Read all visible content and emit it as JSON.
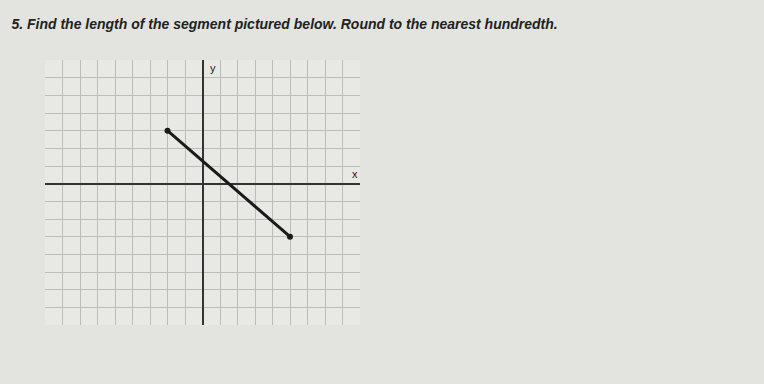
{
  "chart_data": {
    "type": "line",
    "title": "5. Find the length of the segment pictured below. Round to the nearest hundredth.",
    "x_label": "x",
    "y_label": "y",
    "x": [
      -2,
      5
    ],
    "values": [
      3,
      -3
    ],
    "color": "#1a1a1a",
    "marker": "circle",
    "xlim": [
      -9,
      9
    ],
    "ylim": [
      -8,
      7
    ],
    "xticks": [
      -9,
      -8,
      -7,
      -6,
      -5,
      -4,
      -3,
      -2,
      -1,
      0,
      1,
      2,
      3,
      4,
      5,
      6,
      7,
      8,
      9
    ],
    "yticks": [
      -8,
      -7,
      -6,
      -5,
      -4,
      -3,
      -2,
      -1,
      0,
      1,
      2,
      3,
      4,
      5,
      6,
      7
    ],
    "grid": true,
    "tick_labels": false
  }
}
